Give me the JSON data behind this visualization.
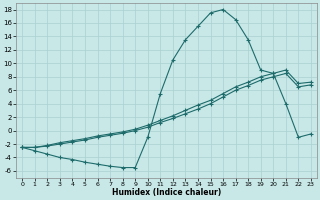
{
  "xlabel": "Humidex (Indice chaleur)",
  "bg_color": "#c8e8e8",
  "line_color": "#1e6b6b",
  "grid_color": "#aad0d0",
  "x_values": [
    0,
    1,
    2,
    3,
    4,
    5,
    6,
    7,
    8,
    9,
    10,
    11,
    12,
    13,
    14,
    15,
    16,
    17,
    18,
    19,
    20,
    21,
    22,
    23
  ],
  "line1": [
    -2.5,
    -3.0,
    -3.5,
    -4.0,
    -4.3,
    -4.7,
    -5.0,
    -5.3,
    -5.5,
    -5.5,
    -1.0,
    5.5,
    10.5,
    13.5,
    15.5,
    17.5,
    18.0,
    16.5,
    13.5,
    9.0,
    8.5,
    4.0,
    -1.0,
    -0.5
  ],
  "line2": [
    -2.5,
    -2.5,
    -2.2,
    -1.8,
    -1.5,
    -1.2,
    -0.8,
    -0.5,
    -0.2,
    0.2,
    0.8,
    1.5,
    2.2,
    3.0,
    3.8,
    4.5,
    5.5,
    6.5,
    7.2,
    8.0,
    8.5,
    9.0,
    7.0,
    7.2
  ],
  "line3": [
    -2.5,
    -2.5,
    -2.3,
    -2.0,
    -1.7,
    -1.4,
    -1.0,
    -0.7,
    -0.4,
    0.0,
    0.5,
    1.2,
    1.8,
    2.5,
    3.2,
    4.0,
    5.0,
    6.0,
    6.7,
    7.5,
    8.0,
    8.5,
    6.5,
    6.8
  ],
  "ylim": [
    -7,
    19
  ],
  "xlim": [
    -0.5,
    23.5
  ],
  "yticks": [
    -6,
    -4,
    -2,
    0,
    2,
    4,
    6,
    8,
    10,
    12,
    14,
    16,
    18
  ],
  "xticks": [
    0,
    1,
    2,
    3,
    4,
    5,
    6,
    7,
    8,
    9,
    10,
    11,
    12,
    13,
    14,
    15,
    16,
    17,
    18,
    19,
    20,
    21,
    22,
    23
  ]
}
